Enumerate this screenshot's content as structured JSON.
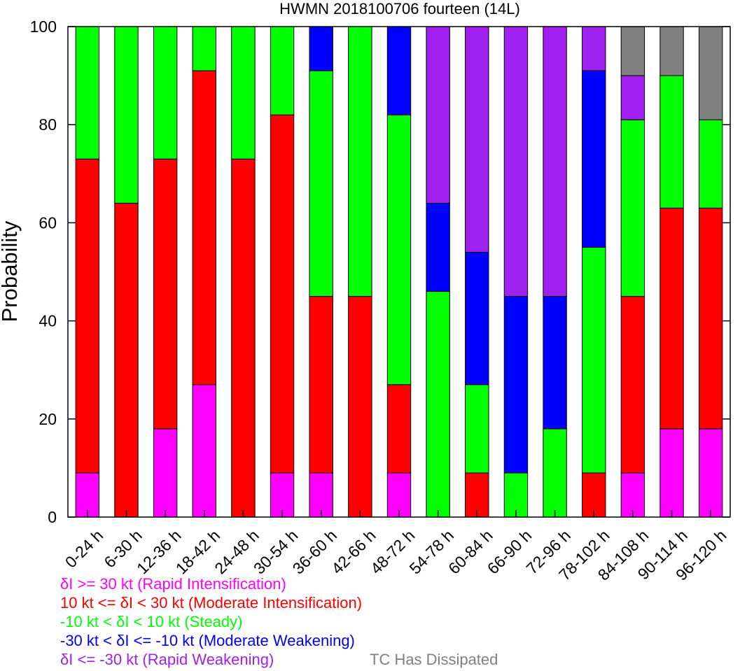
{
  "chart_data": {
    "type": "bar",
    "stacked": true,
    "title": "HWMN 2018100706 fourteen (14L)",
    "ylabel": "Probability",
    "xlabel": "",
    "ylim": [
      0,
      100
    ],
    "yticks": [
      0,
      20,
      40,
      60,
      80,
      100
    ],
    "grid": false,
    "categories": [
      "0-24 h",
      "6-30 h",
      "12-36 h",
      "18-42 h",
      "24-48 h",
      "30-54 h",
      "36-60 h",
      "42-66 h",
      "48-72 h",
      "54-78 h",
      "60-84 h",
      "66-90 h",
      "72-96 h",
      "78-102 h",
      "84-108 h",
      "90-114 h",
      "96-120 h"
    ],
    "series": [
      {
        "key": "ri",
        "color": "#ff00ff",
        "values": [
          9,
          0,
          18,
          27,
          0,
          9,
          9,
          0,
          9,
          0,
          0,
          0,
          0,
          0,
          9,
          18,
          18
        ]
      },
      {
        "key": "mi",
        "color": "#ff0000",
        "values": [
          64,
          64,
          55,
          64,
          73,
          73,
          36,
          45,
          18,
          0,
          9,
          0,
          0,
          9,
          36,
          45,
          45
        ]
      },
      {
        "key": "steady",
        "color": "#00ff00",
        "values": [
          27,
          36,
          27,
          9,
          27,
          18,
          46,
          55,
          55,
          46,
          18,
          9,
          18,
          46,
          36,
          27,
          18
        ]
      },
      {
        "key": "mw",
        "color": "#0000ff",
        "values": [
          0,
          0,
          0,
          0,
          0,
          0,
          9,
          0,
          18,
          18,
          27,
          36,
          27,
          36,
          0,
          0,
          0
        ]
      },
      {
        "key": "rw",
        "color": "#a020f0",
        "values": [
          0,
          0,
          0,
          0,
          0,
          0,
          0,
          0,
          0,
          36,
          46,
          55,
          55,
          9,
          9,
          0,
          0
        ]
      },
      {
        "key": "dissipated",
        "color": "#808080",
        "values": [
          0,
          0,
          0,
          0,
          0,
          0,
          0,
          0,
          0,
          0,
          0,
          0,
          0,
          0,
          10,
          10,
          19
        ]
      }
    ]
  },
  "legend": {
    "items": [
      {
        "text": "δI >= 30 kt (Rapid Intensification)",
        "color": "#ff00ff"
      },
      {
        "text": "10 kt <= δI < 30 kt (Moderate Intensification)",
        "color": "#ff0000"
      },
      {
        "text": "-10 kt < δI < 10 kt (Steady)",
        "color": "#00ff00"
      },
      {
        "text": "-30 kt < δI <= -10 kt (Moderate Weakening)",
        "color": "#0000ff"
      },
      {
        "text": "δI <= -30 kt (Rapid Weakening)",
        "color": "#a020f0"
      }
    ],
    "dissipated": {
      "text": "TC Has Dissipated",
      "color": "#808080"
    }
  }
}
